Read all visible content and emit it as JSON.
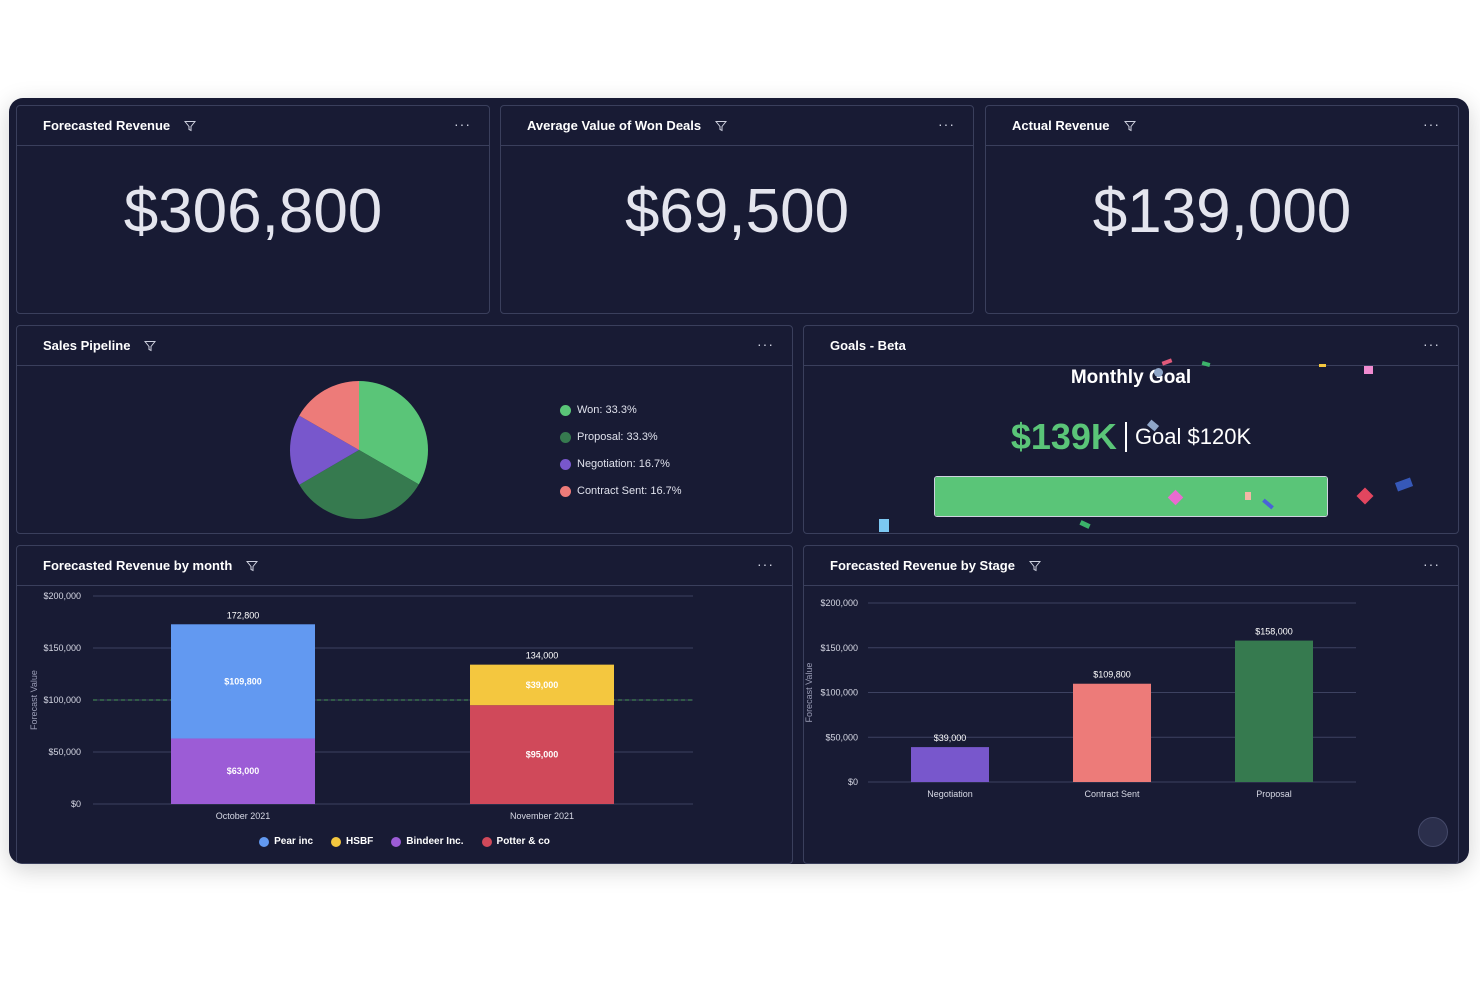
{
  "widgets": {
    "forecasted_revenue": {
      "title": "Forecasted Revenue",
      "value": "$306,800"
    },
    "avg_won_deals": {
      "title": "Average Value of Won Deals",
      "value": "$69,500"
    },
    "actual_revenue": {
      "title": "Actual Revenue",
      "value": "$139,000"
    },
    "sales_pipeline": {
      "title": "Sales Pipeline",
      "legend": [
        {
          "label": "Won: 33.3%",
          "color": "#5ac578"
        },
        {
          "label": "Proposal: 33.3%",
          "color": "#367a4f"
        },
        {
          "label": "Negotiation: 16.7%",
          "color": "#7857cc"
        },
        {
          "label": "Contract Sent: 16.7%",
          "color": "#ed7b79"
        }
      ]
    },
    "goals": {
      "title": "Goals - Beta",
      "heading": "Monthly Goal",
      "current": "$139K",
      "target": "Goal $120K",
      "progress": 1.0
    },
    "revenue_by_month": {
      "title": "Forecasted Revenue by month",
      "legend": [
        {
          "label": "Pear inc",
          "color": "#6299f1"
        },
        {
          "label": "HSBF",
          "color": "#f4c73f"
        },
        {
          "label": "Bindeer Inc.",
          "color": "#9c5cd6"
        },
        {
          "label": "Potter & co",
          "color": "#d0495a"
        }
      ]
    },
    "revenue_by_stage": {
      "title": "Forecasted Revenue by Stage"
    }
  },
  "chart_data": [
    {
      "type": "pie",
      "categories": [
        "Won",
        "Proposal",
        "Negotiation",
        "Contract Sent"
      ],
      "values": [
        33.3,
        33.3,
        16.7,
        16.7
      ],
      "colors": [
        "#5ac578",
        "#367a4f",
        "#7857cc",
        "#ed7b79"
      ]
    },
    {
      "type": "bar",
      "stacked": true,
      "categories": [
        "October 2021",
        "November 2021"
      ],
      "ylabel": "Forecast Value",
      "ylim": [
        0,
        200000
      ],
      "yticks": [
        "$0",
        "$50,000",
        "$100,000",
        "$150,000",
        "$200,000"
      ],
      "reference_line": 100000,
      "totals": [
        "172,800",
        "134,000"
      ],
      "series": [
        {
          "name": "Bindeer Inc.",
          "color": "#9c5cd6",
          "values": [
            63000,
            0
          ],
          "labels": [
            "$63,000",
            ""
          ]
        },
        {
          "name": "Potter & co",
          "color": "#d0495a",
          "values": [
            0,
            95000
          ],
          "labels": [
            "",
            "$95,000"
          ]
        },
        {
          "name": "Pear inc",
          "color": "#6299f1",
          "values": [
            109800,
            0
          ],
          "labels": [
            "$109,800",
            ""
          ]
        },
        {
          "name": "HSBF",
          "color": "#f4c73f",
          "values": [
            0,
            39000
          ],
          "labels": [
            "",
            "$39,000"
          ]
        }
      ]
    },
    {
      "type": "bar",
      "categories": [
        "Negotiation",
        "Contract Sent",
        "Proposal"
      ],
      "values": [
        39000,
        109800,
        158000
      ],
      "labels": [
        "$39,000",
        "$109,800",
        "$158,000"
      ],
      "colors": [
        "#7857cc",
        "#ed7b79",
        "#367a4f"
      ],
      "ylabel": "Forecast Value",
      "ylim": [
        0,
        200000
      ],
      "yticks": [
        "$0",
        "$50,000",
        "$100,000",
        "$150,000",
        "$200,000"
      ]
    }
  ]
}
